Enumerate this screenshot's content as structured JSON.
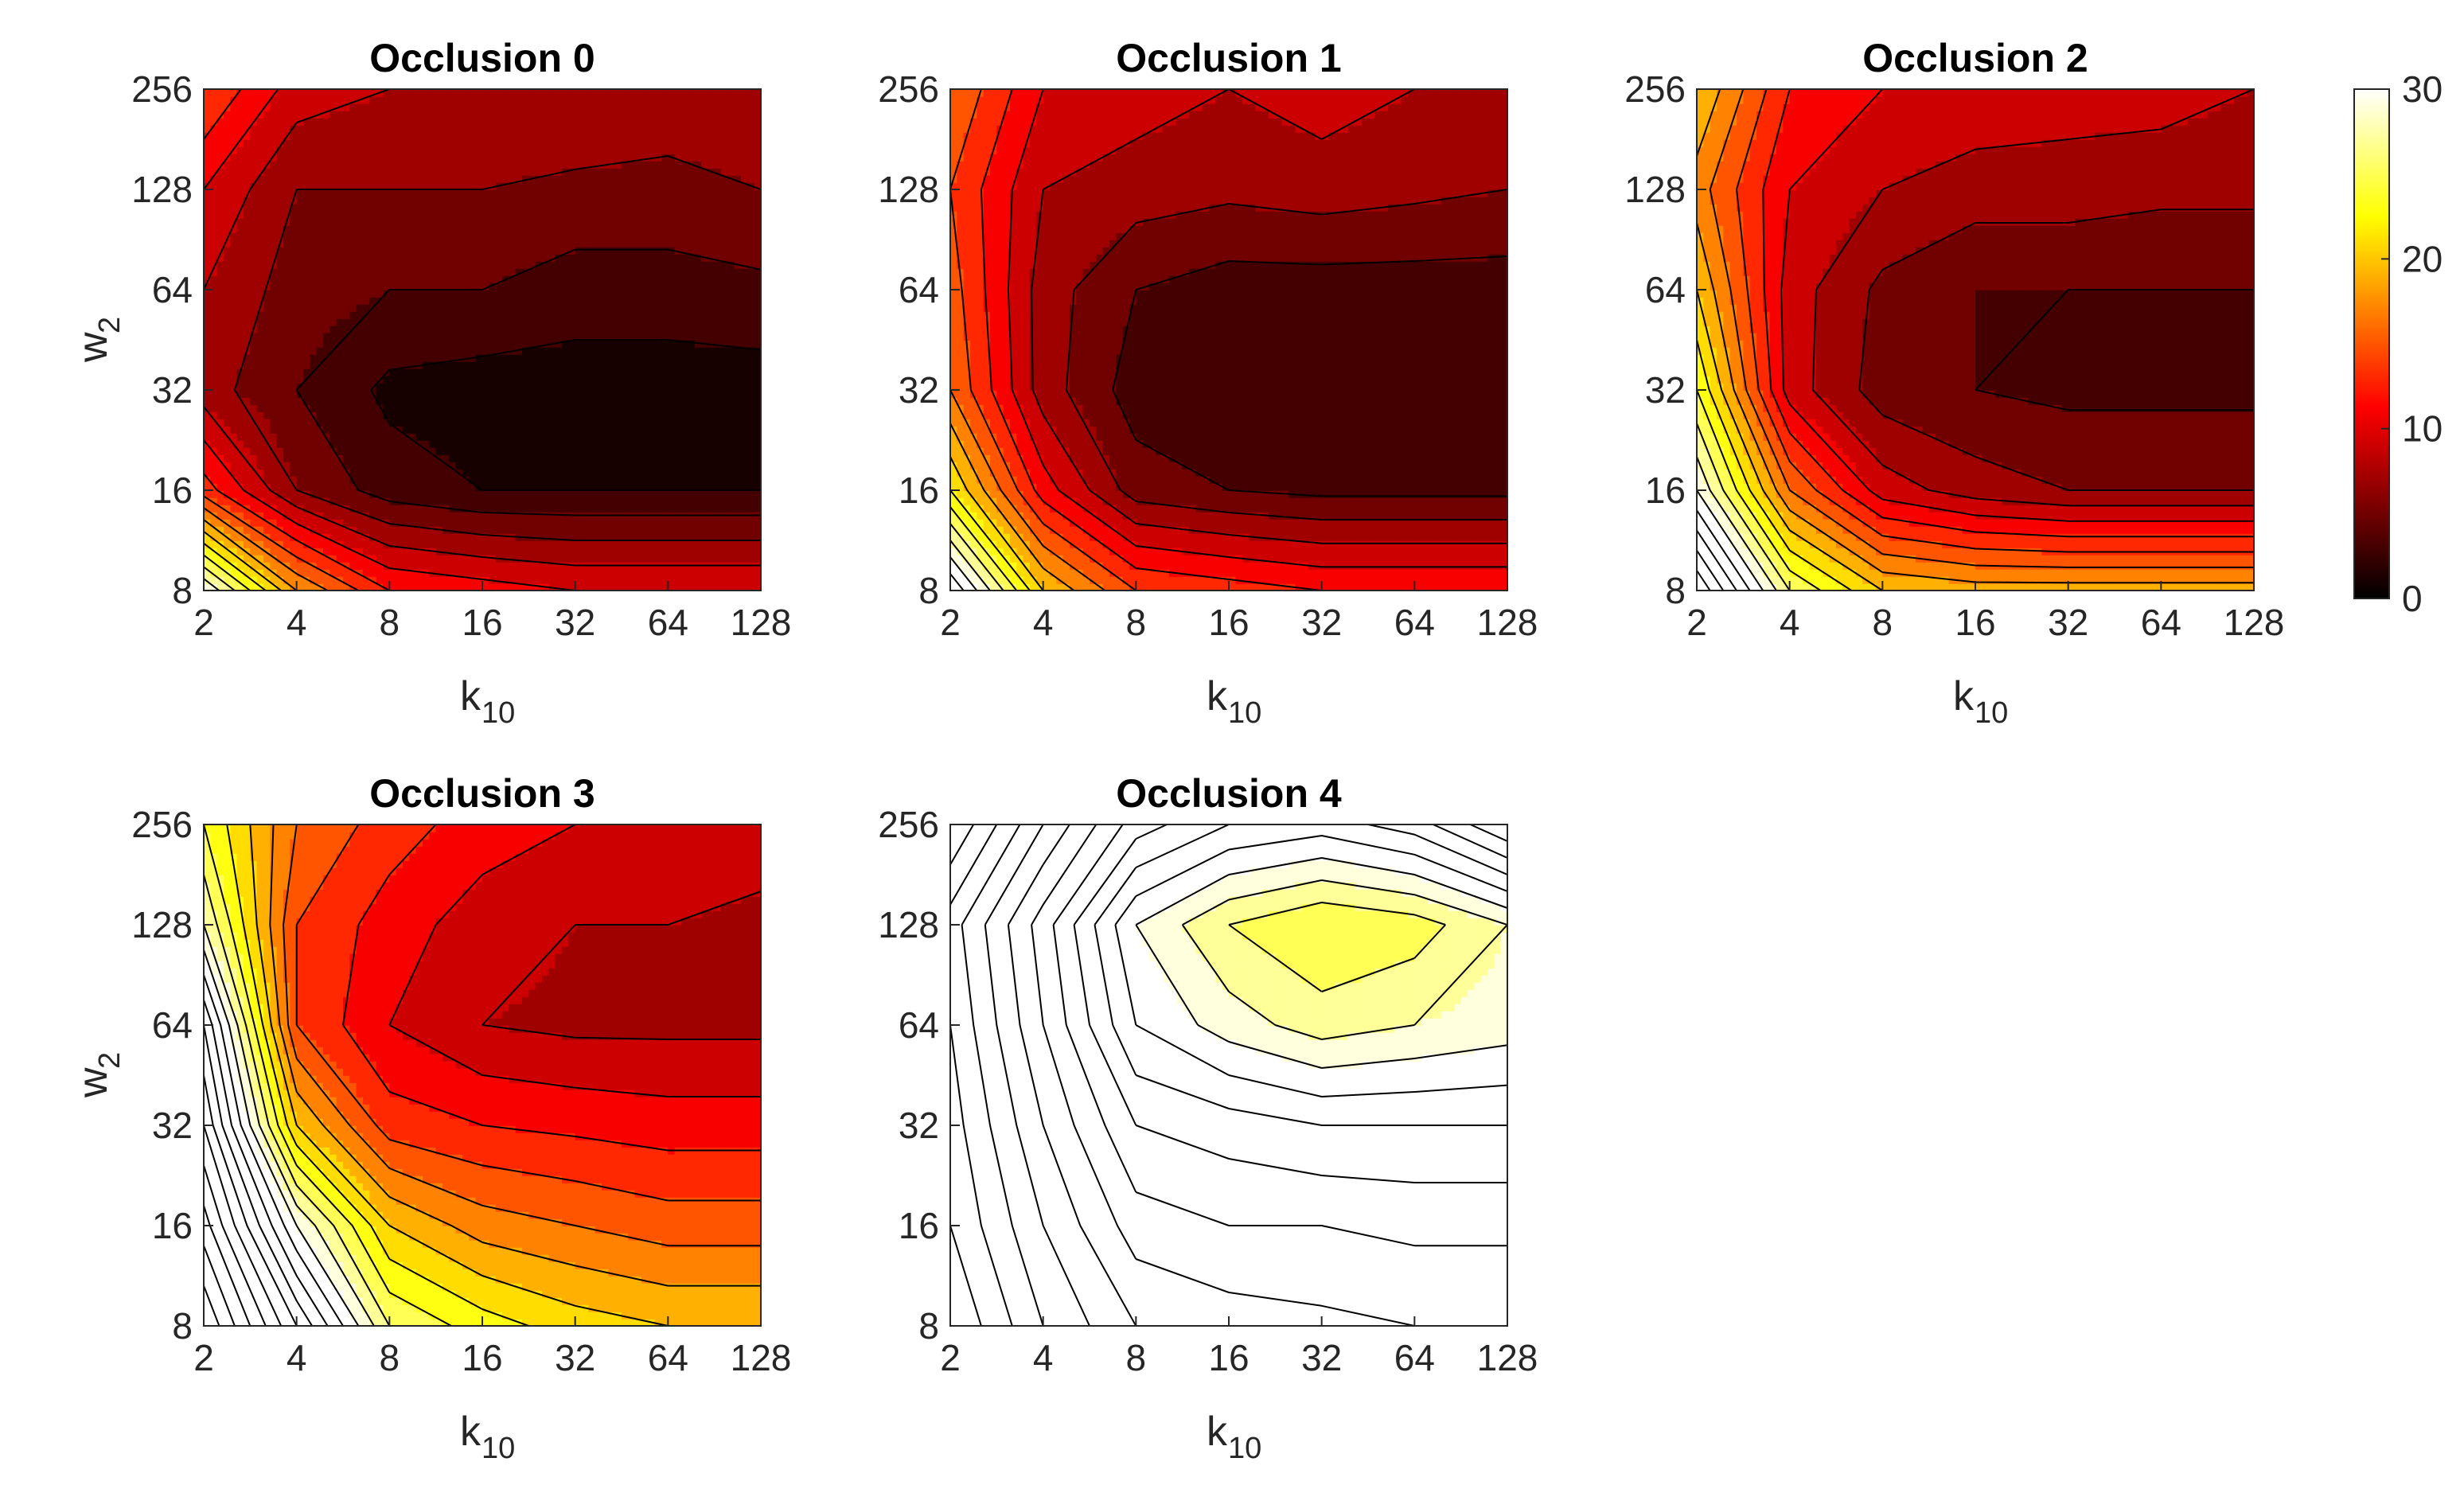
{
  "figure": {
    "xlabel": "k",
    "xlabel_sub": "10",
    "ylabel": "w",
    "ylabel_sub": "2"
  },
  "chart_data": [
    {
      "type": "heatmap",
      "subtype": "filled-contour",
      "title": "Occlusion 0",
      "x_ticks": [
        "2",
        "4",
        "8",
        "16",
        "32",
        "64",
        "128"
      ],
      "y_ticks": [
        "8",
        "16",
        "32",
        "64",
        "128",
        "256"
      ],
      "x_values": [
        2,
        4,
        8,
        16,
        32,
        64,
        128
      ],
      "y_values": [
        8,
        16,
        32,
        64,
        128,
        256
      ],
      "x_scale": "log2",
      "y_scale": "log2",
      "z": [
        [
          30,
          18,
          12,
          11,
          10,
          10,
          10
        ],
        [
          13,
          6,
          3,
          2,
          2,
          2,
          2
        ],
        [
          7,
          4,
          1.5,
          1,
          1,
          1,
          1
        ],
        [
          8,
          5,
          4,
          4,
          3,
          3,
          3.5
        ],
        [
          10,
          6,
          6,
          6,
          5.5,
          5.5,
          6
        ],
        [
          14,
          9,
          8,
          7.5,
          8,
          7,
          7
        ]
      ],
      "show_xlabel": true,
      "show_ylabel": true
    },
    {
      "type": "heatmap",
      "subtype": "filled-contour",
      "title": "Occlusion 1",
      "x_ticks": [
        "2",
        "4",
        "8",
        "16",
        "32",
        "64",
        "128"
      ],
      "y_ticks": [
        "8",
        "16",
        "32",
        "64",
        "128",
        "256"
      ],
      "x_values": [
        2,
        4,
        8,
        16,
        32,
        64,
        128
      ],
      "y_values": [
        8,
        16,
        32,
        64,
        128,
        256
      ],
      "x_scale": "log2",
      "y_scale": "log2",
      "z": [
        [
          34,
          20,
          14,
          13,
          12,
          12,
          12
        ],
        [
          22,
          11,
          5,
          4,
          3.5,
          3.5,
          3.5
        ],
        [
          16,
          7,
          3,
          2,
          2,
          2,
          2
        ],
        [
          15,
          7,
          4,
          3,
          3,
          3,
          3
        ],
        [
          14,
          8,
          7,
          6.5,
          7,
          6.5,
          6
        ],
        [
          16,
          10,
          9,
          8,
          9,
          8,
          7.5
        ]
      ],
      "show_xlabel": true,
      "show_ylabel": false
    },
    {
      "type": "heatmap",
      "subtype": "filled-contour",
      "title": "Occlusion 2",
      "x_ticks": [
        "2",
        "4",
        "8",
        "16",
        "32",
        "64",
        "128"
      ],
      "y_ticks": [
        "8",
        "16",
        "32",
        "64",
        "128",
        "256"
      ],
      "x_values": [
        2,
        4,
        8,
        16,
        32,
        64,
        128
      ],
      "y_values": [
        8,
        16,
        32,
        64,
        128,
        256
      ],
      "x_scale": "log2",
      "y_scale": "log2",
      "z": [
        [
          40,
          26,
          20,
          19,
          19,
          19,
          19
        ],
        [
          30,
          16,
          9,
          7,
          6,
          6,
          6
        ],
        [
          24,
          9,
          5,
          4,
          3.5,
          3.5,
          3.5
        ],
        [
          20,
          9,
          5.5,
          4,
          4,
          4,
          4
        ],
        [
          17,
          10,
          8,
          7,
          7,
          6.5,
          6.5
        ],
        [
          20,
          12,
          10,
          9.5,
          9,
          9,
          8
        ]
      ],
      "show_xlabel": true,
      "show_ylabel": false
    },
    {
      "type": "heatmap",
      "subtype": "filled-contour",
      "title": "Occlusion 3",
      "x_ticks": [
        "2",
        "4",
        "8",
        "16",
        "32",
        "64",
        "128"
      ],
      "y_ticks": [
        "8",
        "16",
        "32",
        "64",
        "128",
        "256"
      ],
      "x_values": [
        2,
        4,
        8,
        16,
        32,
        64,
        128
      ],
      "y_values": [
        8,
        16,
        32,
        64,
        128,
        256
      ],
      "x_scale": "log2",
      "y_scale": "log2",
      "z": [
        [
          50,
          38,
          26,
          23,
          21,
          20,
          20
        ],
        [
          45,
          30,
          20,
          17,
          16,
          15,
          15
        ],
        [
          40,
          20,
          13,
          12,
          11.5,
          11,
          11
        ],
        [
          36,
          14,
          10,
          8,
          7.5,
          7.5,
          7.5
        ],
        [
          28,
          14,
          11,
          9,
          8,
          8,
          7.5
        ],
        [
          24,
          16,
          13,
          11,
          10,
          10,
          9
        ]
      ],
      "show_xlabel": true,
      "show_ylabel": true
    },
    {
      "type": "heatmap",
      "subtype": "filled-contour",
      "title": "Occlusion 4",
      "x_ticks": [
        "2",
        "4",
        "8",
        "16",
        "32",
        "64",
        "128"
      ],
      "y_ticks": [
        "8",
        "16",
        "32",
        "64",
        "128",
        "256"
      ],
      "x_values": [
        2,
        4,
        8,
        16,
        32,
        64,
        128
      ],
      "y_values": [
        8,
        16,
        32,
        64,
        128,
        256
      ],
      "x_scale": "log2",
      "y_scale": "log2",
      "z": [
        [
          52,
          46,
          42,
          41,
          40.5,
          40,
          40
        ],
        [
          50,
          44,
          39,
          38,
          38,
          37.5,
          37.5
        ],
        [
          49,
          42,
          36,
          35,
          34,
          34,
          34
        ],
        [
          48,
          40,
          32,
          29,
          27,
          28,
          29
        ],
        [
          47,
          39,
          30,
          26,
          24,
          25,
          28
        ],
        [
          52,
          44,
          37,
          34,
          33,
          35,
          40
        ]
      ],
      "show_xlabel": true,
      "show_ylabel": false
    }
  ],
  "colorbar": {
    "colormap": "hot",
    "min": 0,
    "max": 30,
    "ticks": [
      "0",
      "10",
      "20",
      "30"
    ],
    "tick_values": [
      0,
      10,
      20,
      30
    ],
    "colors": [
      "#000000",
      "#ff0000",
      "#ffff00",
      "#ffffff"
    ]
  }
}
